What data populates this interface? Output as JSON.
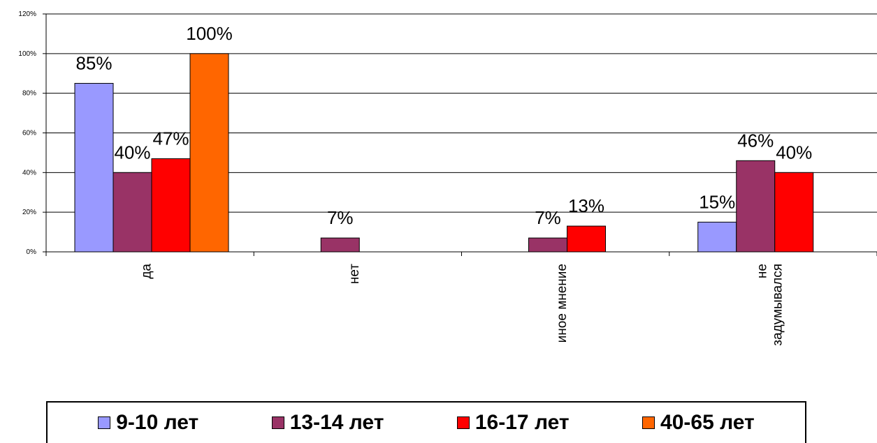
{
  "chart_data": {
    "type": "bar",
    "categories": [
      "да",
      "нет",
      "иное мнение",
      "не задумывался"
    ],
    "category_lines": [
      [
        "да"
      ],
      [
        "нет"
      ],
      [
        "иное мнение"
      ],
      [
        "не",
        "задумывался"
      ]
    ],
    "series": [
      {
        "name": "9-10 лет",
        "color": "#9999ff",
        "values": [
          85,
          null,
          null,
          15
        ],
        "labels": [
          "85%",
          null,
          null,
          "15%"
        ]
      },
      {
        "name": "13-14 лет",
        "color": "#993366",
        "values": [
          40,
          7,
          7,
          46
        ],
        "labels": [
          "40%",
          "7%",
          "7%",
          "46%"
        ]
      },
      {
        "name": "16-17 лет",
        "color": "#ff0000",
        "values": [
          47,
          null,
          13,
          40
        ],
        "labels": [
          "47%",
          null,
          "13%",
          "40%"
        ]
      },
      {
        "name": "40-65 лет",
        "color": "#ff6600",
        "values": [
          100,
          null,
          null,
          null
        ],
        "labels": [
          "100%",
          null,
          null,
          null
        ]
      }
    ],
    "yticks": [
      "0%",
      "20%",
      "40%",
      "60%",
      "80%",
      "100%",
      "120%"
    ],
    "ylim": [
      0,
      120
    ],
    "grid": true,
    "legend_position": "bottom"
  }
}
